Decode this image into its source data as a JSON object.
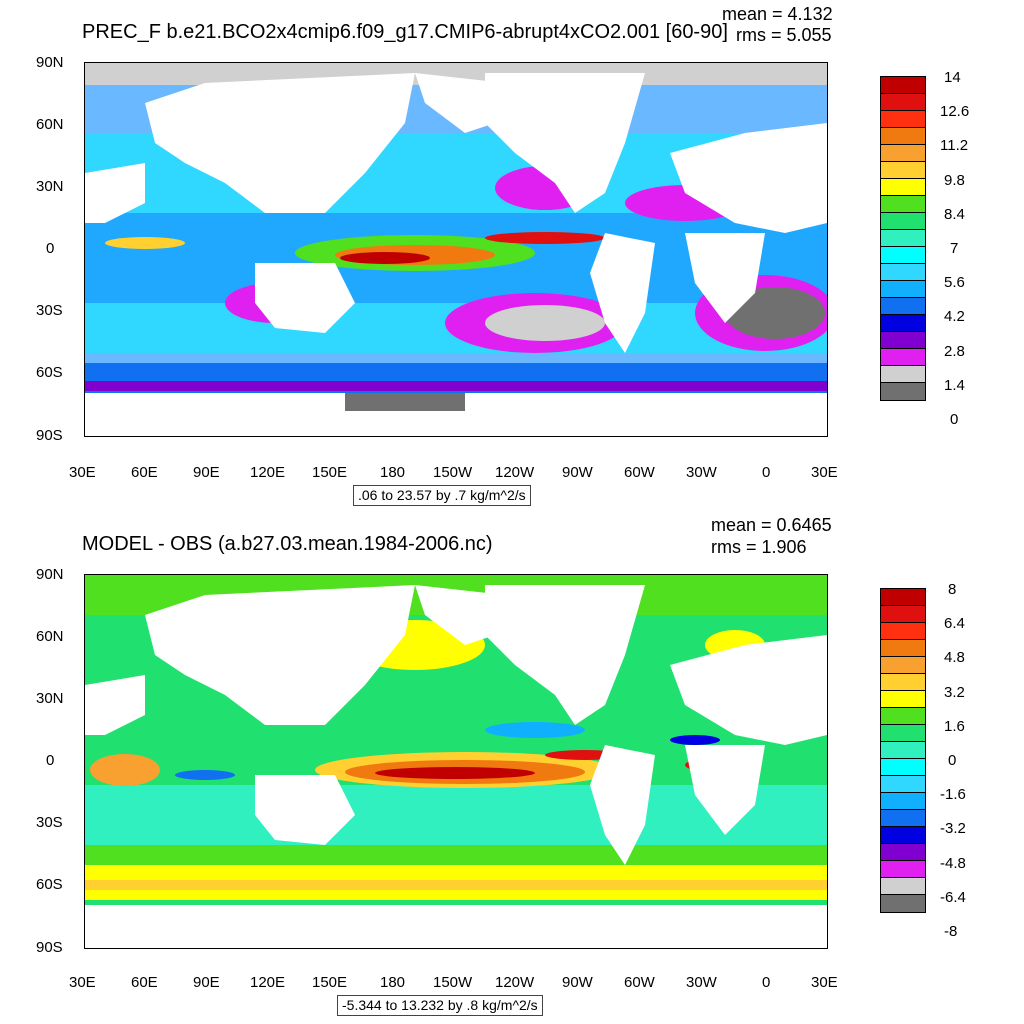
{
  "panels": [
    {
      "title": "PREC_F b.e21.BCO2x4cmip6.f09_g17.CMIP6-abrupt4xCO2.001 [60-90]",
      "mean": "mean = 4.132",
      "rms": "rms = 5.055",
      "range": ".06 to 23.57 by .7 kg/m^2/s",
      "lat_labels": [
        "90N",
        "60N",
        "30N",
        "0",
        "30S",
        "60S",
        "90S"
      ],
      "lon_labels": [
        "30E",
        "60E",
        "90E",
        "120E",
        "150E",
        "180",
        "150W",
        "120W",
        "90W",
        "60W",
        "30W",
        "0",
        "30E"
      ],
      "colorbar_labels": [
        "14",
        "12.6",
        "11.2",
        "9.8",
        "8.4",
        "7",
        "5.6",
        "4.2",
        "2.8",
        "1.4",
        "0"
      ],
      "colorbar_colors": [
        "#c00000",
        "#e01010",
        "#ff3010",
        "#f07a10",
        "#f8a030",
        "#ffd030",
        "#ffff00",
        "#50e020",
        "#20e070",
        "#30f0c0",
        "#00ffff",
        "#30d8ff",
        "#10b0ff",
        "#1070f0",
        "#0000e0",
        "#8000d0",
        "#e020f0",
        "#d0d0d0",
        "#707070"
      ]
    },
    {
      "title": "MODEL - OBS (a.b27.03.mean.1984-2006.nc)",
      "mean": "mean = 0.6465",
      "rms": "rms = 1.906",
      "range": "-5.344 to 13.232 by .8 kg/m^2/s",
      "lat_labels": [
        "90N",
        "60N",
        "30N",
        "0",
        "30S",
        "60S",
        "90S"
      ],
      "lon_labels": [
        "30E",
        "60E",
        "90E",
        "120E",
        "150E",
        "180",
        "150W",
        "120W",
        "90W",
        "60W",
        "30W",
        "0",
        "30E"
      ],
      "colorbar_labels": [
        "8",
        "6.4",
        "4.8",
        "3.2",
        "1.6",
        "0",
        "-1.6",
        "-3.2",
        "-4.8",
        "-6.4",
        "-8"
      ],
      "colorbar_colors": [
        "#c00000",
        "#e01010",
        "#ff3010",
        "#f07a10",
        "#f8a030",
        "#ffd030",
        "#ffff00",
        "#50e020",
        "#20e070",
        "#30f0c0",
        "#00ffff",
        "#30d8ff",
        "#10b0ff",
        "#1070f0",
        "#0000e0",
        "#8000d0",
        "#e020f0",
        "#d0d0d0",
        "#707070"
      ]
    }
  ]
}
